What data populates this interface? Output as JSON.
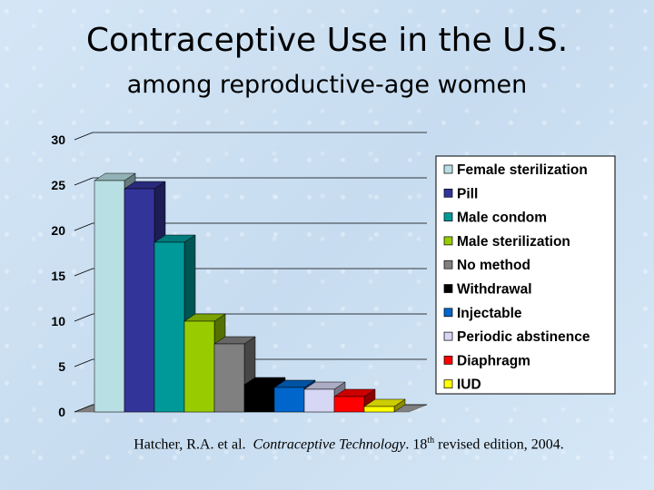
{
  "title": "Contraceptive Use in the U.S.",
  "subtitle": "among reproductive-age women",
  "citation": {
    "authors": "Hatcher, R.A. et al.",
    "book": "Contraceptive Technology",
    "edition_num": "18",
    "edition_sup": "th",
    "edition_rest": "revised edition, 2004."
  },
  "chart_data": {
    "type": "bar",
    "title": "Contraceptive Use in the U.S.",
    "subtitle": "among reproductive-age women",
    "xlabel": "",
    "ylabel": "",
    "ylim": [
      0,
      30
    ],
    "yticks": [
      0,
      5,
      10,
      15,
      20,
      25,
      30
    ],
    "grid": true,
    "legend_position": "right",
    "categories": [
      "Female sterilization",
      "Pill",
      "Male condom",
      "Male sterilization",
      "No method",
      "Withdrawal",
      "Injectable",
      "Periodic abstinence",
      "Diaphragm",
      "IUD"
    ],
    "values": [
      25.5,
      24.6,
      18.7,
      10.0,
      7.5,
      3.0,
      2.7,
      2.5,
      1.7,
      0.6
    ],
    "colors": [
      "#b8dfe3",
      "#33349a",
      "#009999",
      "#99cc00",
      "#808080",
      "#000000",
      "#0066cc",
      "#d6d6f5",
      "#ff0000",
      "#ffff00"
    ]
  }
}
